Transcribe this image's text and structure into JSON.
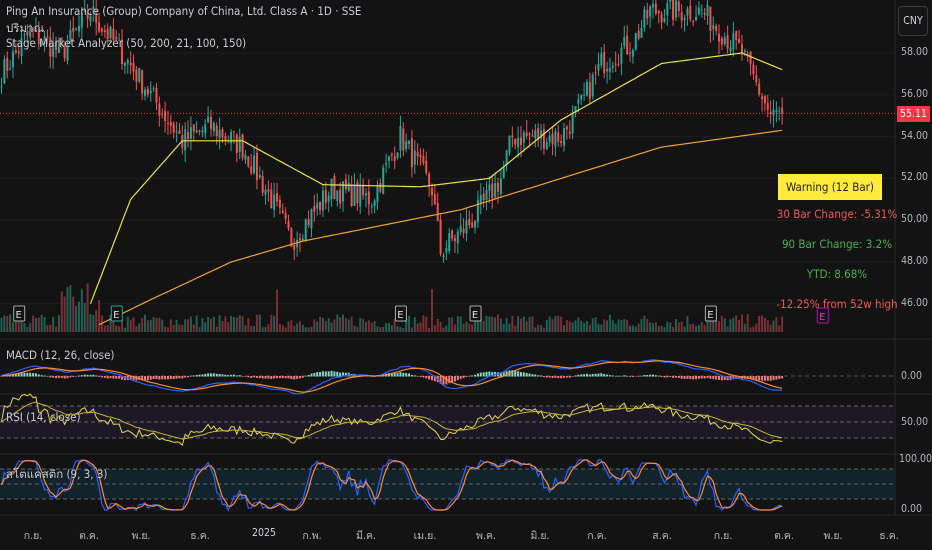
{
  "header": {
    "title": "Ping An Insurance (Group) Company of China, Ltd. Class A · 1D · SSE",
    "volume_label": "ปริมาณ",
    "indicator_label": "Stage Market Analyzer (50, 200, 21, 100, 150)",
    "currency": "CNY"
  },
  "stage_panel": {
    "warning": "Warning (12 Bar)",
    "bar30": "30 Bar Change: -5.31%",
    "bar90": "90 Bar Change: 3.2%",
    "ytd": "YTD: 8.68%",
    "from_high": "-12.25% from 52w high"
  },
  "colors": {
    "up": "#26a69a",
    "down": "#ef5350",
    "ma50": "#e8e24a",
    "ma200": "#f0a030",
    "macd": "#2962ff",
    "signal": "#ff8a30",
    "rsi": "#e6d84a",
    "stoch_k": "#2962ff",
    "stoch_d": "#ff8a30",
    "warning_bg": "#ffeb3b",
    "neg_text": "#f0555a",
    "pos_text": "#4caf50"
  },
  "chart_data": {
    "type": "candlestick",
    "title": "Ping An Insurance (Group) Company of China, Ltd. Class A · 1D · SSE",
    "y_ticks": [
      "58.00",
      "56.00",
      "54.00",
      "52.00",
      "50.00",
      "48.00",
      "46.00"
    ],
    "y_range": [
      45,
      61
    ],
    "last_price": "55.11",
    "x_labels": [
      "ก.ย.",
      "ต.ค.",
      "พ.ย.",
      "ธ.ค.",
      "2025",
      "ก.พ.",
      "มี.ค.",
      "เม.ย.",
      "พ.ค.",
      "มิ.ย.",
      "ก.ค.",
      "ส.ค.",
      "ก.ย.",
      "ต.ค.",
      "พ.ย.",
      "ธ.ค."
    ],
    "bars": 273,
    "close_anchors": [
      [
        0,
        57
      ],
      [
        10,
        59
      ],
      [
        21,
        58
      ],
      [
        31,
        60
      ],
      [
        42,
        58
      ],
      [
        52,
        56
      ],
      [
        63,
        53.8
      ],
      [
        73,
        54.5
      ],
      [
        84,
        53.5
      ],
      [
        94,
        51
      ],
      [
        101,
        49
      ],
      [
        115,
        51.5
      ],
      [
        129,
        51
      ],
      [
        139,
        54
      ],
      [
        150,
        51.5
      ],
      [
        153,
        48.5
      ],
      [
        164,
        50
      ],
      [
        174,
        52
      ],
      [
        178,
        54
      ],
      [
        195,
        54
      ],
      [
        202,
        55.5
      ],
      [
        209,
        57.5
      ],
      [
        220,
        58.5
      ],
      [
        226,
        60
      ],
      [
        244,
        60
      ],
      [
        258,
        58
      ],
      [
        268,
        55
      ],
      [
        272,
        55.11
      ]
    ],
    "ma50_anchors": [
      [
        31,
        46
      ],
      [
        45,
        51
      ],
      [
        63,
        53.8
      ],
      [
        84,
        53.8
      ],
      [
        112,
        51.7
      ],
      [
        146,
        51.6
      ],
      [
        170,
        52
      ],
      [
        195,
        54.8
      ],
      [
        230,
        57.5
      ],
      [
        258,
        58
      ],
      [
        272,
        57.2
      ]
    ],
    "ma200_anchors": [
      [
        34,
        45
      ],
      [
        52,
        46.2
      ],
      [
        80,
        48
      ],
      [
        105,
        49
      ],
      [
        160,
        50.5
      ],
      [
        195,
        52
      ],
      [
        230,
        53.5
      ],
      [
        272,
        54.3
      ]
    ],
    "earnings_bars": [
      6,
      40,
      139,
      165,
      247,
      286
    ],
    "macd": {
      "label": "MACD (12, 26, close)",
      "tick": "0.00"
    },
    "rsi": {
      "label": "RSI (14, close)",
      "tick": "50.00"
    },
    "stoch": {
      "label": "สโตแคสติก (9, 3, 3)",
      "tick_top": "100.00",
      "tick_bottom": "0.00"
    }
  }
}
